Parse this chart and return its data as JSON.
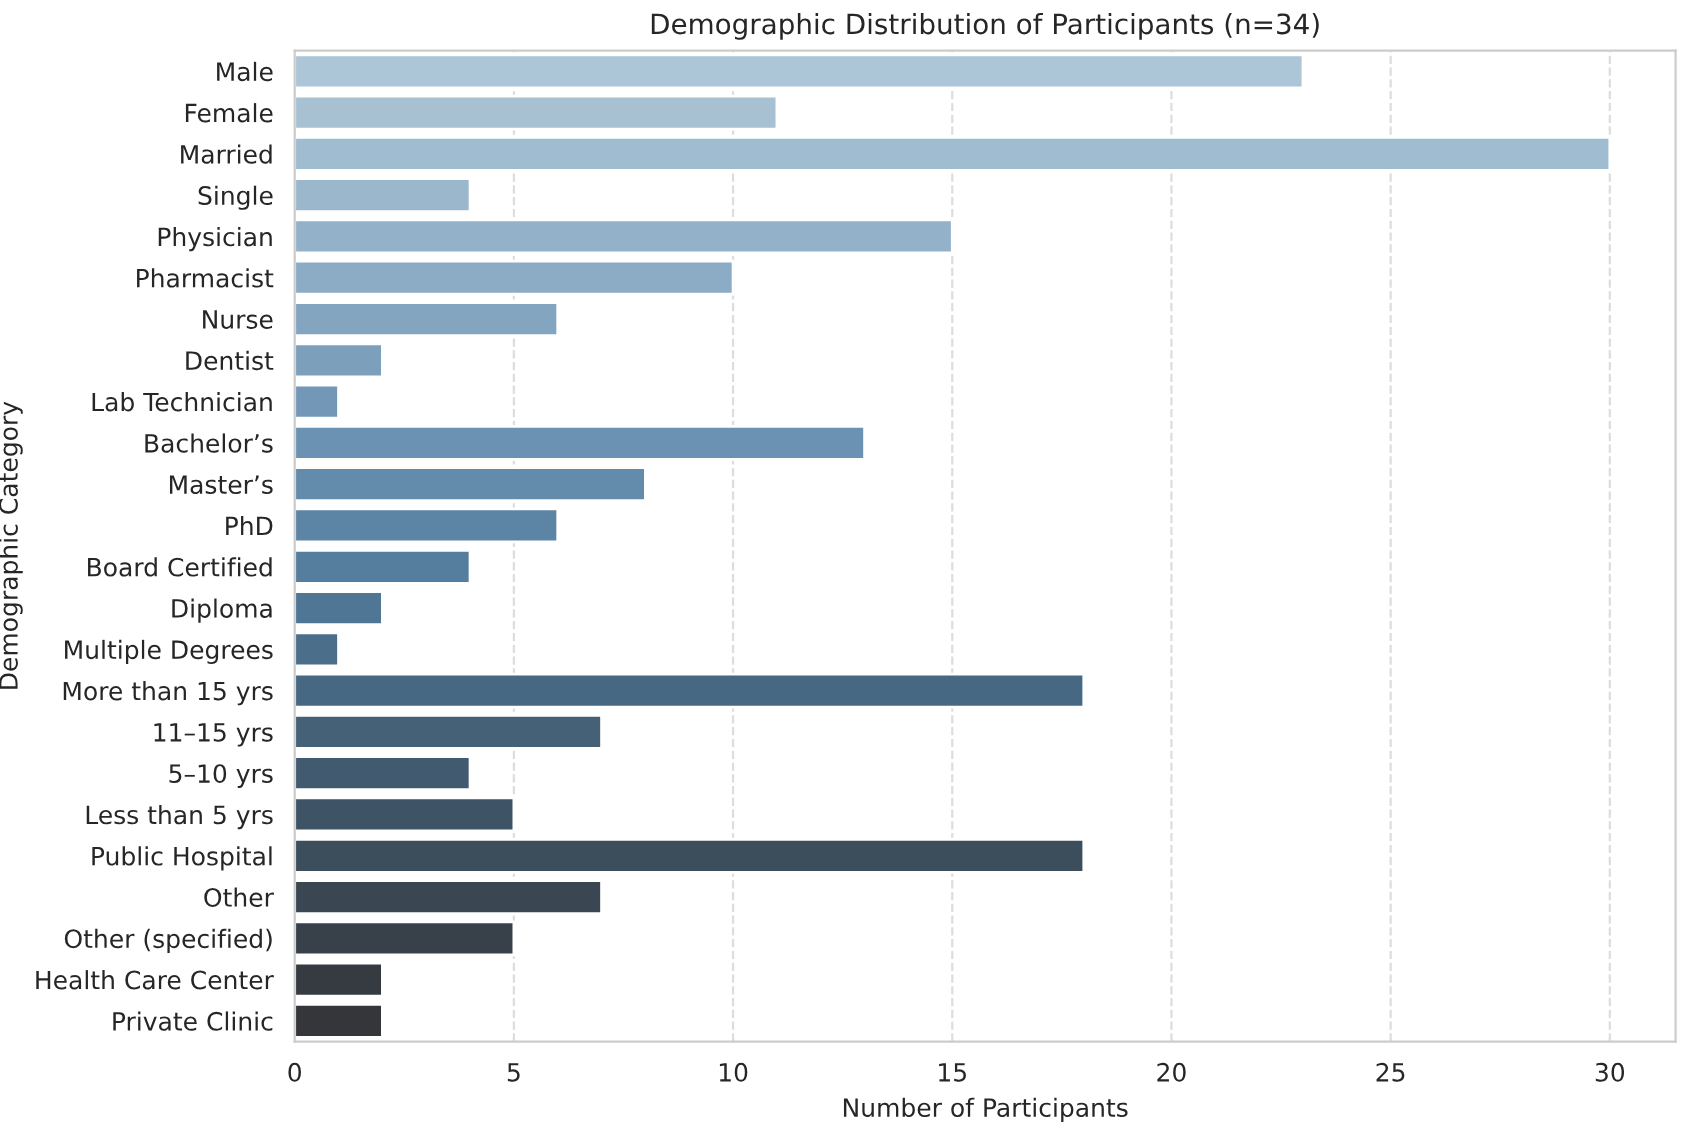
{
  "chart_data": {
    "type": "bar",
    "orientation": "horizontal",
    "title": "Demographic Distribution of Participants (n=34)",
    "xlabel": "Number of Participants",
    "ylabel": "Demographic Category",
    "categories": [
      "Male",
      "Female",
      "Married",
      "Single",
      "Physician",
      "Pharmacist",
      "Nurse",
      "Dentist",
      "Lab Technician",
      "Bachelor’s",
      "Master’s",
      "PhD",
      "Board Certified",
      "Diploma",
      "Multiple Degrees",
      "More than 15 yrs",
      "11–15 yrs",
      "5–10 yrs",
      "Less than 5 yrs",
      "Public Hospital",
      "Other",
      "Other (specified)",
      "Health Care Center",
      "Private Clinic"
    ],
    "values": [
      23,
      11,
      30,
      4,
      15,
      10,
      6,
      2,
      1,
      13,
      8,
      6,
      4,
      2,
      1,
      18,
      7,
      4,
      5,
      18,
      7,
      5,
      2,
      2
    ],
    "colors": [
      "#a5c6de",
      "#9fc2db",
      "#98bdd8",
      "#91b8d5",
      "#8ab2d1",
      "#82acce",
      "#7aa6ca",
      "#71a0c6",
      "#6899c2",
      "#5f93be",
      "#578cb8",
      "#4f85b1",
      "#497ea9",
      "#4477a0",
      "#407096",
      "#3d698c",
      "#3b6281",
      "#3a5b76",
      "#38546b",
      "#374d60",
      "#364756",
      "#35414c",
      "#343b43",
      "#33363b"
    ],
    "xlim": [
      0,
      31.5
    ],
    "xticks": [
      0,
      5,
      10,
      15,
      20,
      25,
      30
    ],
    "grid": "x"
  }
}
